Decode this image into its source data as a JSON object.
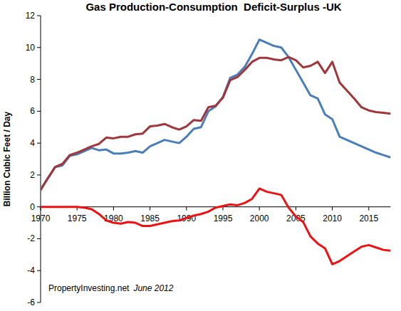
{
  "chart_data": {
    "type": "line",
    "title": "Gas Production-Consumption  Deficit-Surplus -UK",
    "y_label": "Billion Cubic Feet / Day",
    "annotations": [
      "PropertyInvesting.net",
      "June 2012"
    ],
    "x": [
      1970,
      1971,
      1972,
      1973,
      1974,
      1975,
      1976,
      1977,
      1978,
      1979,
      1980,
      1981,
      1982,
      1983,
      1984,
      1985,
      1986,
      1987,
      1988,
      1989,
      1990,
      1991,
      1992,
      1993,
      1994,
      1995,
      1996,
      1997,
      1998,
      1999,
      2000,
      2001,
      2002,
      2003,
      2004,
      2005,
      2006,
      2007,
      2008,
      2009,
      2010,
      2011,
      2012,
      2013,
      2014,
      2015,
      2016,
      2017,
      2018
    ],
    "series": [
      {
        "color": "#4a7ebb",
        "values": [
          1.1,
          1.8,
          2.5,
          2.6,
          3.2,
          3.3,
          3.5,
          3.7,
          3.55,
          3.6,
          3.35,
          3.35,
          3.4,
          3.5,
          3.4,
          3.8,
          4.0,
          4.2,
          4.1,
          4.0,
          4.4,
          4.9,
          5.0,
          6.0,
          6.3,
          6.9,
          8.1,
          8.3,
          8.8,
          9.6,
          10.5,
          10.3,
          10.1,
          10.0,
          9.4,
          8.6,
          7.8,
          7.0,
          6.8,
          5.8,
          5.5,
          4.4,
          4.2,
          4.0,
          3.8,
          3.6,
          3.4,
          3.25,
          3.1
        ]
      },
      {
        "color": "#a0363a",
        "values": [
          1.05,
          1.8,
          2.5,
          2.7,
          3.25,
          3.4,
          3.6,
          3.8,
          3.95,
          4.35,
          4.3,
          4.4,
          4.4,
          4.55,
          4.6,
          5.05,
          5.1,
          5.2,
          5.0,
          4.85,
          5.05,
          5.45,
          5.4,
          6.25,
          6.35,
          6.85,
          7.95,
          8.15,
          8.6,
          9.1,
          9.35,
          9.35,
          9.25,
          9.2,
          9.4,
          9.2,
          8.75,
          8.85,
          9.1,
          8.4,
          9.1,
          7.8,
          7.3,
          6.8,
          6.25,
          6.05,
          5.95,
          5.9,
          5.85
        ]
      },
      {
        "color": "#ee1111",
        "values": [
          0,
          0,
          0,
          0,
          0,
          0,
          -0.05,
          -0.15,
          -0.45,
          -0.85,
          -1.0,
          -1.05,
          -0.95,
          -1.0,
          -1.2,
          -1.2,
          -1.1,
          -1.0,
          -0.9,
          -0.85,
          -0.7,
          -0.55,
          -0.45,
          -0.3,
          -0.05,
          0.05,
          0.15,
          0.1,
          0.25,
          0.5,
          1.15,
          0.95,
          0.85,
          0.75,
          -0.05,
          -0.6,
          -0.95,
          -1.85,
          -2.3,
          -2.6,
          -3.6,
          -3.4,
          -3.1,
          -2.8,
          -2.5,
          -2.4,
          -2.55,
          -2.7,
          -2.75
        ]
      }
    ],
    "xlim": [
      1970,
      2018
    ],
    "xticks": [
      1970,
      1975,
      1980,
      1985,
      1990,
      1995,
      2000,
      2005,
      2010,
      2015
    ],
    "ylim": [
      -6,
      12
    ],
    "yticks": [
      -6,
      -4,
      -2,
      0,
      2,
      4,
      6,
      8,
      10,
      12
    ],
    "grid": false
  }
}
